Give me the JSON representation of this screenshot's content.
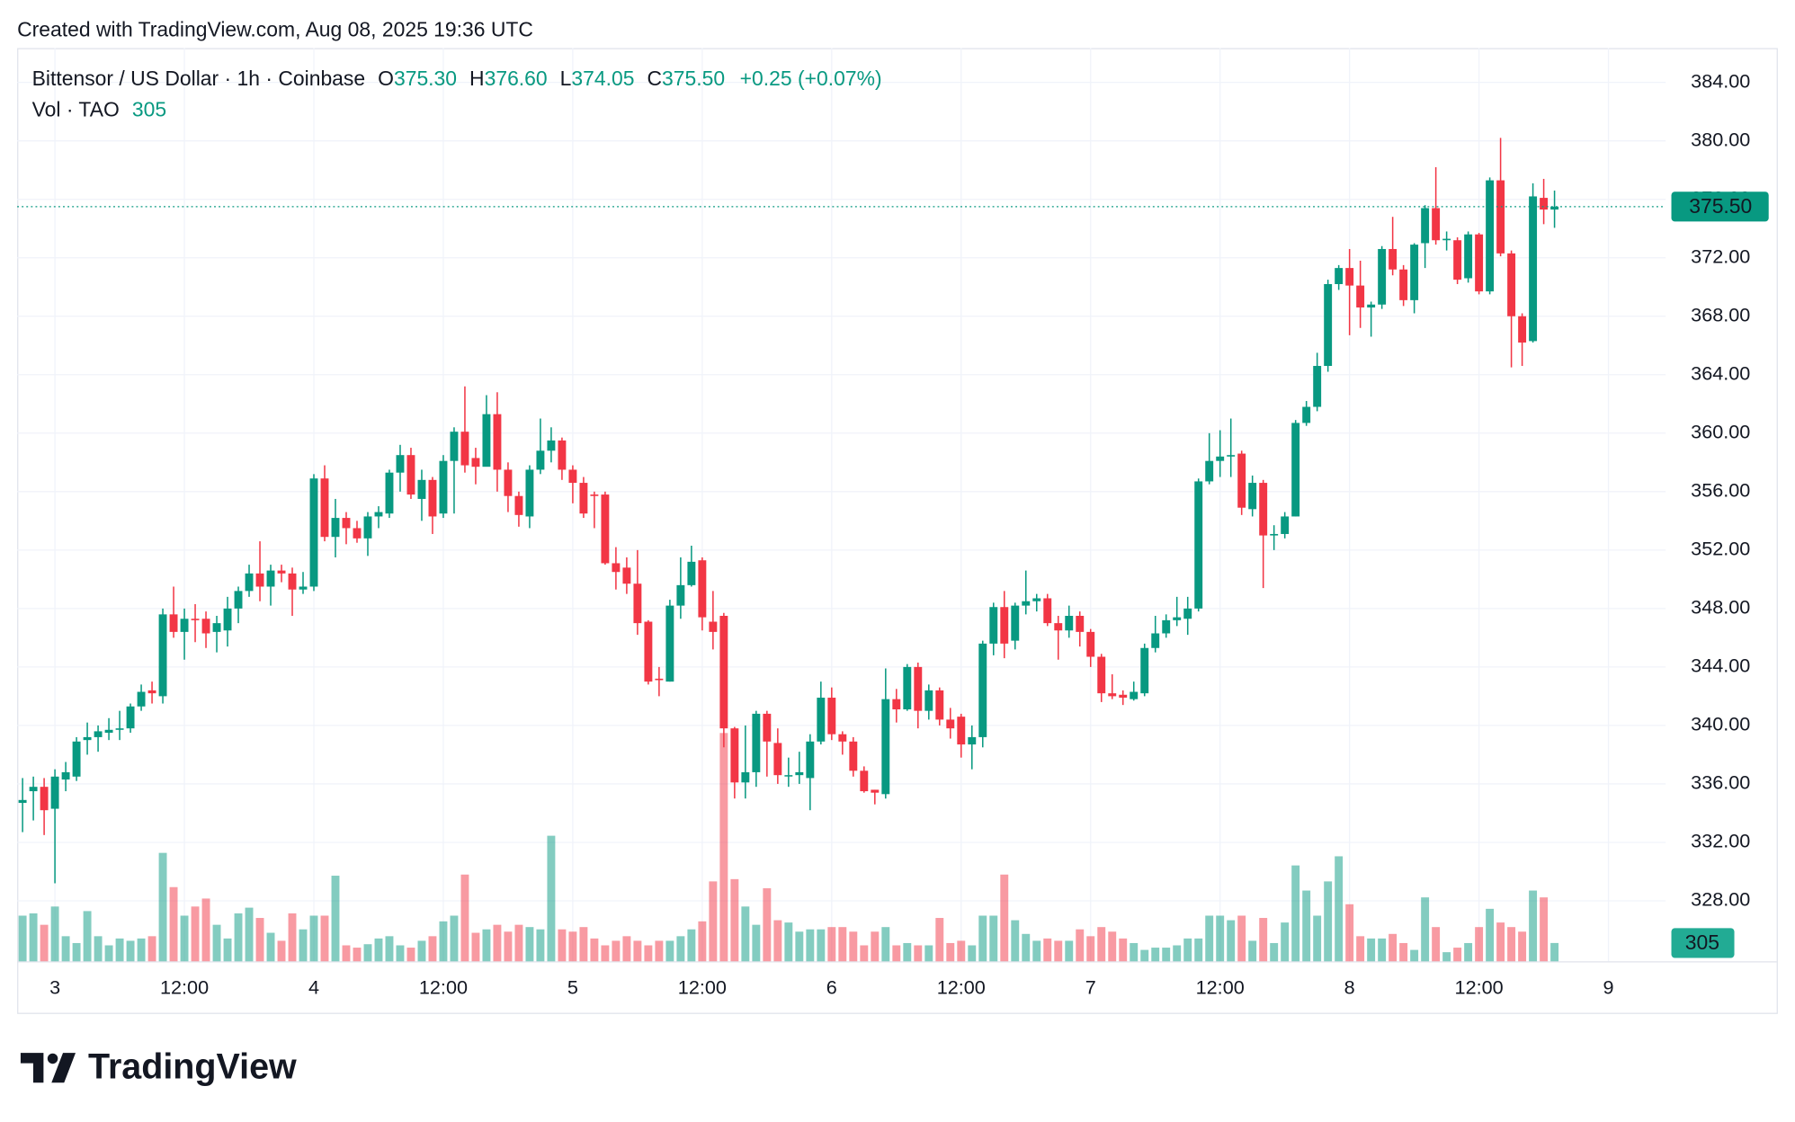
{
  "header": "Created with TradingView.com, Aug 08, 2025 19:36 UTC",
  "footer": "TradingView",
  "legend": {
    "symbol": "Bittensor / US Dollar · 1h · Coinbase",
    "ohlc": [
      {
        "label": "O",
        "value": "375.30"
      },
      {
        "label": "H",
        "value": "376.60"
      },
      {
        "label": "L",
        "value": "374.05"
      },
      {
        "label": "C",
        "value": "375.50"
      }
    ],
    "change": "+0.25 (+0.07%)",
    "volume_label": "Vol · TAO"
  },
  "last_price_label": "375.50",
  "chart_data": {
    "type": "candlestick",
    "up_color": "#089981",
    "down_color": "#f23645",
    "grid": true,
    "xlim": [
      -3.5,
      149.3
    ],
    "ylim": [
      323.86,
      386.35
    ],
    "volume_ylim": [
      0,
      4000
    ],
    "xticks": [
      {
        "value": 0,
        "label": "3"
      },
      {
        "value": 12,
        "label": "12:00"
      },
      {
        "value": 24,
        "label": "4"
      },
      {
        "value": 36,
        "label": "12:00"
      },
      {
        "value": 48,
        "label": "5"
      },
      {
        "value": 60,
        "label": "12:00"
      },
      {
        "value": 72,
        "label": "6"
      },
      {
        "value": 84,
        "label": "12:00"
      },
      {
        "value": 96,
        "label": "7"
      },
      {
        "value": 108,
        "label": "12:00"
      },
      {
        "value": 120,
        "label": "8"
      },
      {
        "value": 132,
        "label": "12:00"
      },
      {
        "value": 144,
        "label": "9"
      }
    ],
    "yticks": [
      {
        "value": 328,
        "label": "328.00"
      },
      {
        "value": 332,
        "label": "332.00"
      },
      {
        "value": 336,
        "label": "336.00"
      },
      {
        "value": 340,
        "label": "340.00"
      },
      {
        "value": 344,
        "label": "344.00"
      },
      {
        "value": 348,
        "label": "348.00"
      },
      {
        "value": 352,
        "label": "352.00"
      },
      {
        "value": 356,
        "label": "356.00"
      },
      {
        "value": 360,
        "label": "360.00"
      },
      {
        "value": 364,
        "label": "364.00"
      },
      {
        "value": 368,
        "label": "368.00"
      },
      {
        "value": 372,
        "label": "372.00"
      },
      {
        "value": 376,
        "label": "376.00"
      },
      {
        "value": 380,
        "label": "380.00"
      },
      {
        "value": 384,
        "label": "384.00"
      }
    ],
    "x": [
      -3,
      -2,
      -1,
      0,
      1,
      2,
      3,
      4,
      5,
      6,
      7,
      8,
      9,
      10,
      11,
      12,
      13,
      14,
      15,
      16,
      17,
      18,
      19,
      20,
      21,
      22,
      23,
      24,
      25,
      26,
      27,
      28,
      29,
      30,
      31,
      32,
      33,
      34,
      35,
      36,
      37,
      38,
      39,
      40,
      41,
      42,
      43,
      44,
      45,
      46,
      47,
      48,
      49,
      50,
      51,
      52,
      53,
      54,
      55,
      56,
      57,
      58,
      59,
      60,
      61,
      62,
      63,
      64,
      65,
      66,
      67,
      68,
      69,
      70,
      71,
      72,
      73,
      74,
      75,
      76,
      77,
      78,
      79,
      80,
      81,
      82,
      83,
      84,
      85,
      86,
      87,
      88,
      89,
      90,
      91,
      92,
      93,
      94,
      95,
      96,
      97,
      98,
      99,
      100,
      101,
      102,
      103,
      104,
      105,
      106,
      107,
      108,
      109,
      110,
      111,
      112,
      113,
      114,
      115,
      116,
      117,
      118,
      119,
      120,
      121,
      122,
      123,
      124,
      125,
      126,
      127,
      128,
      129,
      130,
      131,
      132,
      133,
      134,
      135,
      136,
      137,
      138,
      139
    ],
    "open": [
      334.7,
      335.5,
      335.8,
      334.3,
      336.3,
      336.5,
      339,
      339.2,
      339.5,
      339.7,
      339.8,
      341.3,
      342.4,
      342,
      347.6,
      346.4,
      347.3,
      347.3,
      346.4,
      346.5,
      348,
      349.2,
      350.4,
      349.5,
      350.6,
      350.4,
      349.3,
      349.5,
      356.9,
      352.9,
      354.2,
      353.5,
      352.8,
      354.3,
      354.5,
      357.3,
      358.5,
      355.5,
      356.8,
      354.5,
      358.1,
      360.1,
      358.3,
      357.7,
      361.3,
      357.5,
      355.7,
      354.3,
      357.5,
      358.8,
      359.5,
      357.5,
      356.6,
      355.8,
      355.8,
      351.1,
      350.8,
      349.7,
      347.1,
      343.2,
      343,
      348.2,
      349.6,
      351.3,
      347.1,
      347.5,
      339.8,
      336.1,
      336.8,
      340.8,
      338.8,
      336.6,
      336.6,
      336.4,
      338.9,
      341.9,
      339.4,
      338.9,
      336.9,
      335.6,
      335.3,
      341.8,
      341.1,
      344,
      341,
      342.4,
      340.4,
      340.6,
      338.7,
      339.2,
      345.6,
      348.1,
      345.8,
      348.2,
      348.5,
      348.7,
      347,
      346.5,
      347.5,
      346.4,
      344.7,
      342.2,
      342.1,
      341.8,
      342.2,
      345.3,
      346.3,
      347.2,
      347.3,
      348,
      356.7,
      358.1,
      358.4,
      358.6,
      354.8,
      356.6,
      353,
      353.1,
      354.3,
      360.7,
      361.8,
      364.6,
      370.2,
      371.3,
      370.1,
      368.6,
      368.8,
      372.6,
      371.2,
      369.1,
      373,
      375.4,
      373.2,
      373.2,
      370.6,
      373.6,
      369.7,
      377.3,
      372.3,
      368,
      366.3,
      376.1,
      375.3
    ],
    "high": [
      336.4,
      336.5,
      336.4,
      337,
      337.5,
      339.2,
      340.2,
      340,
      340.5,
      341,
      341.5,
      342.8,
      343,
      348,
      349.5,
      348,
      348.3,
      347.8,
      347.5,
      348.8,
      349.5,
      351,
      352.6,
      351,
      351,
      350.8,
      350.5,
      357.2,
      357.8,
      355.5,
      354.6,
      354,
      354.6,
      355,
      357.5,
      359.2,
      359,
      357.5,
      357,
      358.5,
      360.4,
      363.2,
      359,
      362.6,
      362.8,
      358,
      356,
      357.8,
      361,
      360.4,
      359.7,
      357.8,
      357,
      356,
      356,
      352.2,
      351.5,
      352,
      347.2,
      344,
      348.6,
      351.5,
      352.3,
      351.5,
      349.2,
      347.7,
      339.9,
      340,
      341,
      341,
      339.8,
      337.8,
      338.2,
      339.4,
      343,
      342.6,
      339.6,
      339.2,
      337.2,
      335.6,
      343.9,
      342.5,
      344.2,
      344.3,
      342.8,
      342.6,
      341.2,
      340.8,
      340,
      345.8,
      348.4,
      349.2,
      348.4,
      350.6,
      349,
      349,
      347.5,
      348.2,
      347.8,
      346.6,
      344.9,
      343.5,
      342.4,
      343,
      345.6,
      347.5,
      347.6,
      348.8,
      348.8,
      356.9,
      360,
      360.2,
      361,
      358.8,
      357.1,
      356.8,
      353.7,
      354.6,
      360.9,
      362.2,
      365.5,
      370.5,
      371.5,
      372.6,
      371.8,
      369,
      372.8,
      374.8,
      371.5,
      373,
      375.6,
      378.2,
      373.8,
      373.4,
      373.8,
      373.7,
      377.5,
      380.2,
      372.5,
      368.2,
      377.1,
      377.4,
      376.6
    ],
    "low": [
      332.7,
      333.5,
      332.5,
      329.2,
      335.5,
      336.2,
      338,
      338.2,
      339,
      339,
      339.5,
      341,
      341.5,
      341.5,
      346,
      344.5,
      345.7,
      345.3,
      345,
      345.4,
      347,
      348.8,
      348.5,
      348.2,
      349.8,
      347.5,
      349,
      349.2,
      352.6,
      351.5,
      352.4,
      352.5,
      351.6,
      353.5,
      354.2,
      356,
      355.5,
      354,
      353.1,
      354.2,
      354.5,
      357.3,
      356.5,
      358,
      356,
      354.6,
      353.6,
      353.5,
      357.2,
      358,
      356.8,
      355.2,
      354.2,
      353.5,
      351,
      349.3,
      349,
      346.2,
      342.8,
      342,
      343,
      347.3,
      349.5,
      346.5,
      345.2,
      338.5,
      335,
      335,
      335.8,
      336.5,
      336,
      335.8,
      336,
      334.2,
      338.7,
      339,
      338,
      336.5,
      335.4,
      334.6,
      335,
      340.2,
      341,
      339.8,
      340.4,
      340,
      339.1,
      337.8,
      337,
      338.5,
      344.8,
      344.6,
      345.2,
      347.6,
      347.8,
      346.8,
      344.5,
      346,
      345.4,
      344,
      341.6,
      341.8,
      341.4,
      341.7,
      342,
      345,
      346,
      346.8,
      346.2,
      347.8,
      356.5,
      357,
      357,
      354.4,
      354.3,
      349.4,
      352,
      352.8,
      354.3,
      360.5,
      361.5,
      364.2,
      369.8,
      366.7,
      367.2,
      366.6,
      368.5,
      370.8,
      368.7,
      368.2,
      371.3,
      372.9,
      372.5,
      370.2,
      370.3,
      369.5,
      369.5,
      372.1,
      364.5,
      364.6,
      366.2,
      374.3,
      374.05
    ],
    "close": [
      334.9,
      335.8,
      334.2,
      336.5,
      336.8,
      338.9,
      339.2,
      339.6,
      339.7,
      339.8,
      341.3,
      342.3,
      342.2,
      347.6,
      346.4,
      347.3,
      347.2,
      346.3,
      347,
      348,
      349.2,
      350.4,
      349.5,
      350.6,
      350.4,
      349.3,
      349.5,
      356.9,
      352.9,
      354.2,
      353.5,
      352.8,
      354.3,
      354.6,
      357.3,
      358.5,
      355.8,
      356.8,
      354.3,
      358.1,
      360.1,
      357.8,
      357.7,
      361.3,
      357.5,
      355.7,
      354.4,
      357.5,
      358.8,
      359.5,
      357.5,
      356.6,
      354.5,
      355.7,
      351.1,
      350.5,
      349.7,
      347,
      343,
      343.1,
      348.2,
      349.6,
      351.2,
      347.4,
      346.4,
      339.8,
      336.1,
      336.8,
      340.8,
      338.9,
      336.6,
      336.6,
      336.8,
      338.9,
      341.9,
      339.4,
      338.9,
      336.9,
      335.5,
      335.4,
      341.8,
      341.1,
      344,
      341,
      342.4,
      340.4,
      339.8,
      338.7,
      339.2,
      345.6,
      348.1,
      345.6,
      348.2,
      348.5,
      348.7,
      347,
      346.5,
      347.5,
      346.4,
      344.7,
      342.2,
      342,
      341.9,
      342.3,
      345.3,
      346.3,
      347.2,
      347.4,
      348,
      356.7,
      358.1,
      358.4,
      358.5,
      354.9,
      356.6,
      353,
      353.1,
      354.3,
      360.7,
      361.8,
      364.6,
      370.2,
      371.3,
      370.1,
      368.6,
      368.8,
      372.6,
      371.2,
      369.1,
      372.9,
      375.4,
      373.2,
      373.3,
      370.5,
      373.6,
      369.7,
      377.3,
      372.3,
      368,
      366.2,
      376.2,
      375.3,
      375.5
    ],
    "volume": [
      760,
      798,
      608,
      912,
      418,
      304,
      836,
      418,
      266,
      380,
      342,
      380,
      418,
      1805,
      1235,
      760,
      912,
      1045,
      608,
      380,
      798,
      893,
      722,
      475,
      342,
      798,
      532,
      760,
      760,
      1425,
      266,
      228,
      285,
      380,
      418,
      266,
      228,
      342,
      418,
      665,
      760,
      1444,
      475,
      532,
      608,
      494,
      608,
      570,
      532,
      2090,
      532,
      494,
      570,
      380,
      266,
      342,
      418,
      342,
      266,
      342,
      342,
      418,
      532,
      665,
      1330,
      3800,
      1368,
      912,
      608,
      1216,
      684,
      646,
      494,
      532,
      532,
      570,
      570,
      494,
      266,
      494,
      570,
      266,
      304,
      266,
      266,
      722,
      304,
      342,
      266,
      760,
      760,
      1444,
      684,
      456,
      342,
      380,
      342,
      342,
      532,
      418,
      570,
      494,
      380,
      304,
      190,
      228,
      228,
      266,
      380,
      380,
      760,
      760,
      684,
      760,
      342,
      722,
      304,
      646,
      1596,
      1178,
      760,
      1330,
      1748,
      950,
      418,
      380,
      380,
      456,
      304,
      190,
      1064,
      570,
      152,
      228,
      304,
      570,
      874,
      646,
      570,
      494,
      1178,
      1064,
      305
    ]
  }
}
